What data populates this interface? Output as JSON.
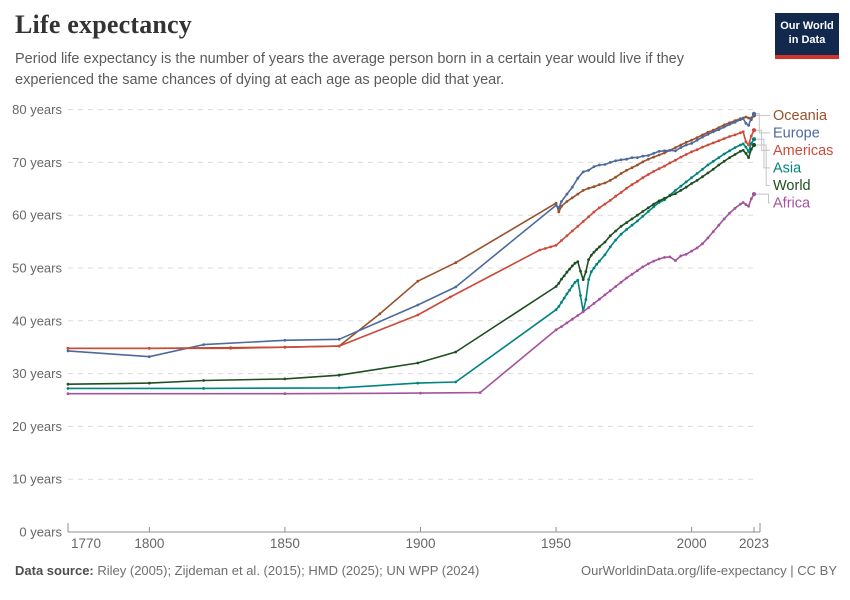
{
  "header": {
    "title": "Life expectancy",
    "subtitle": "Period life expectancy is the number of years the average person born in a certain year would live if they experienced the same chances of dying at each age as people did that year.",
    "logo": {
      "line1": "Our World",
      "line2": "in Data"
    }
  },
  "footer": {
    "source_label": "Data source:",
    "source_value": " Riley (2005); Zijdeman et al. (2015); HMD (2025); UN WPP (2024)",
    "attribution": "OurWorldinData.org/life-expectancy | CC BY"
  },
  "chart_data": {
    "type": "line",
    "title": "Life expectancy",
    "xlabel": "",
    "ylabel": "years",
    "x_domain": [
      1770,
      2023
    ],
    "y_domain": [
      0,
      80
    ],
    "x_ticks": [
      1770,
      1800,
      1850,
      1900,
      1950,
      2000,
      2023
    ],
    "y_ticks": [
      0,
      10,
      20,
      30,
      40,
      50,
      60,
      70,
      80
    ],
    "y_tick_suffix": " years",
    "grid": "horizontal-dashed",
    "legend_position": "right",
    "legend_order": [
      "Oceania",
      "Europe",
      "Americas",
      "Asia",
      "World",
      "Africa"
    ],
    "series": [
      {
        "name": "Oceania",
        "color": "#9A5129",
        "points": [
          [
            1770,
            34.8
          ],
          [
            1800,
            34.8
          ],
          [
            1830,
            34.9
          ],
          [
            1850,
            35.0
          ],
          [
            1870,
            35.2
          ],
          [
            1885,
            41.3
          ],
          [
            1899,
            47.5
          ],
          [
            1913,
            51.0
          ],
          [
            1950,
            62.3
          ],
          [
            1951,
            60.6
          ],
          [
            1952,
            61.7
          ],
          [
            1954,
            62.6
          ],
          [
            1956,
            63.3
          ],
          [
            1958,
            64.0
          ],
          [
            1960,
            64.7
          ],
          [
            1962,
            65.1
          ],
          [
            1964,
            65.4
          ],
          [
            1966,
            65.8
          ],
          [
            1968,
            66.1
          ],
          [
            1970,
            66.6
          ],
          [
            1972,
            67.2
          ],
          [
            1974,
            67.9
          ],
          [
            1976,
            68.5
          ],
          [
            1978,
            69.0
          ],
          [
            1980,
            69.5
          ],
          [
            1982,
            70.1
          ],
          [
            1984,
            70.6
          ],
          [
            1986,
            71.0
          ],
          [
            1988,
            71.4
          ],
          [
            1990,
            71.8
          ],
          [
            1992,
            72.3
          ],
          [
            1994,
            72.8
          ],
          [
            1996,
            73.3
          ],
          [
            1998,
            73.8
          ],
          [
            2000,
            74.2
          ],
          [
            2002,
            74.7
          ],
          [
            2004,
            75.2
          ],
          [
            2006,
            75.7
          ],
          [
            2008,
            76.1
          ],
          [
            2010,
            76.6
          ],
          [
            2012,
            77.1
          ],
          [
            2014,
            77.5
          ],
          [
            2016,
            77.9
          ],
          [
            2018,
            78.3
          ],
          [
            2019,
            78.4
          ],
          [
            2020,
            78.6
          ],
          [
            2021,
            78.4
          ],
          [
            2022,
            78.1
          ],
          [
            2023,
            78.9
          ]
        ]
      },
      {
        "name": "Europe",
        "color": "#4C6A9C",
        "points": [
          [
            1770,
            34.3
          ],
          [
            1800,
            33.2
          ],
          [
            1820,
            35.5
          ],
          [
            1850,
            36.3
          ],
          [
            1870,
            36.5
          ],
          [
            1899,
            43.0
          ],
          [
            1913,
            46.4
          ],
          [
            1950,
            61.9
          ],
          [
            1951,
            61.4
          ],
          [
            1952,
            62.6
          ],
          [
            1954,
            64.0
          ],
          [
            1956,
            65.3
          ],
          [
            1958,
            67.0
          ],
          [
            1960,
            68.2
          ],
          [
            1962,
            68.5
          ],
          [
            1964,
            69.2
          ],
          [
            1966,
            69.5
          ],
          [
            1968,
            69.6
          ],
          [
            1970,
            70.0
          ],
          [
            1972,
            70.3
          ],
          [
            1974,
            70.5
          ],
          [
            1976,
            70.6
          ],
          [
            1978,
            70.9
          ],
          [
            1980,
            70.9
          ],
          [
            1982,
            71.2
          ],
          [
            1984,
            71.3
          ],
          [
            1986,
            71.7
          ],
          [
            1988,
            72.1
          ],
          [
            1990,
            72.2
          ],
          [
            1992,
            72.3
          ],
          [
            1994,
            72.2
          ],
          [
            1996,
            72.8
          ],
          [
            1998,
            73.3
          ],
          [
            2000,
            73.6
          ],
          [
            2002,
            74.2
          ],
          [
            2004,
            74.8
          ],
          [
            2006,
            75.3
          ],
          [
            2008,
            75.8
          ],
          [
            2010,
            76.2
          ],
          [
            2012,
            76.7
          ],
          [
            2014,
            77.2
          ],
          [
            2016,
            77.6
          ],
          [
            2018,
            78.1
          ],
          [
            2019,
            78.3
          ],
          [
            2020,
            77.4
          ],
          [
            2021,
            77.0
          ],
          [
            2022,
            78.4
          ],
          [
            2023,
            79.2
          ]
        ]
      },
      {
        "name": "Americas",
        "color": "#CB4A3A",
        "points": [
          [
            1770,
            34.8
          ],
          [
            1800,
            34.8
          ],
          [
            1830,
            34.8
          ],
          [
            1850,
            35.0
          ],
          [
            1870,
            35.2
          ],
          [
            1899,
            41.1
          ],
          [
            1911,
            44.5
          ],
          [
            1944,
            53.4
          ],
          [
            1946,
            53.7
          ],
          [
            1948,
            54.0
          ],
          [
            1950,
            54.3
          ],
          [
            1952,
            55.2
          ],
          [
            1954,
            56.1
          ],
          [
            1956,
            57.0
          ],
          [
            1958,
            57.9
          ],
          [
            1960,
            58.8
          ],
          [
            1962,
            59.7
          ],
          [
            1964,
            60.6
          ],
          [
            1966,
            61.4
          ],
          [
            1968,
            62.1
          ],
          [
            1970,
            62.8
          ],
          [
            1972,
            63.6
          ],
          [
            1974,
            64.3
          ],
          [
            1976,
            65.1
          ],
          [
            1978,
            65.8
          ],
          [
            1980,
            66.4
          ],
          [
            1982,
            67.1
          ],
          [
            1984,
            67.7
          ],
          [
            1986,
            68.3
          ],
          [
            1988,
            68.8
          ],
          [
            1990,
            69.3
          ],
          [
            1992,
            69.9
          ],
          [
            1994,
            70.4
          ],
          [
            1996,
            71.0
          ],
          [
            1998,
            71.5
          ],
          [
            2000,
            72.0
          ],
          [
            2002,
            72.4
          ],
          [
            2004,
            72.9
          ],
          [
            2006,
            73.3
          ],
          [
            2008,
            73.7
          ],
          [
            2010,
            74.1
          ],
          [
            2012,
            74.5
          ],
          [
            2014,
            74.9
          ],
          [
            2016,
            75.2
          ],
          [
            2018,
            75.6
          ],
          [
            2019,
            75.8
          ],
          [
            2020,
            73.9
          ],
          [
            2021,
            73.3
          ],
          [
            2022,
            75.0
          ],
          [
            2023,
            76.1
          ]
        ]
      },
      {
        "name": "Asia",
        "color": "#00847E",
        "points": [
          [
            1770,
            27.2
          ],
          [
            1820,
            27.2
          ],
          [
            1870,
            27.3
          ],
          [
            1899,
            28.2
          ],
          [
            1913,
            28.4
          ],
          [
            1950,
            42.1
          ],
          [
            1951,
            42.7
          ],
          [
            1952,
            43.5
          ],
          [
            1953,
            44.3
          ],
          [
            1954,
            45.1
          ],
          [
            1955,
            45.8
          ],
          [
            1956,
            46.6
          ],
          [
            1957,
            47.3
          ],
          [
            1958,
            47.7
          ],
          [
            1959,
            44.8
          ],
          [
            1960,
            41.8
          ],
          [
            1961,
            44.0
          ],
          [
            1962,
            47.8
          ],
          [
            1963,
            49.3
          ],
          [
            1964,
            50.0
          ],
          [
            1965,
            50.7
          ],
          [
            1966,
            51.3
          ],
          [
            1968,
            52.5
          ],
          [
            1970,
            54.0
          ],
          [
            1972,
            55.3
          ],
          [
            1974,
            56.4
          ],
          [
            1976,
            57.3
          ],
          [
            1978,
            58.1
          ],
          [
            1980,
            58.9
          ],
          [
            1982,
            59.8
          ],
          [
            1984,
            60.7
          ],
          [
            1986,
            61.6
          ],
          [
            1988,
            62.4
          ],
          [
            1990,
            62.9
          ],
          [
            1992,
            63.8
          ],
          [
            1994,
            64.7
          ],
          [
            1996,
            65.5
          ],
          [
            1998,
            66.3
          ],
          [
            2000,
            67.1
          ],
          [
            2002,
            67.9
          ],
          [
            2004,
            68.7
          ],
          [
            2006,
            69.5
          ],
          [
            2008,
            70.2
          ],
          [
            2010,
            70.9
          ],
          [
            2012,
            71.6
          ],
          [
            2014,
            72.2
          ],
          [
            2016,
            72.8
          ],
          [
            2018,
            73.3
          ],
          [
            2019,
            73.5
          ],
          [
            2020,
            72.9
          ],
          [
            2021,
            72.0
          ],
          [
            2022,
            73.6
          ],
          [
            2023,
            74.4
          ]
        ]
      },
      {
        "name": "World",
        "color": "#1F4F20",
        "points": [
          [
            1770,
            28.0
          ],
          [
            1800,
            28.2
          ],
          [
            1820,
            28.7
          ],
          [
            1850,
            29.0
          ],
          [
            1870,
            29.7
          ],
          [
            1899,
            32.0
          ],
          [
            1913,
            34.1
          ],
          [
            1950,
            46.5
          ],
          [
            1951,
            47.1
          ],
          [
            1952,
            47.9
          ],
          [
            1953,
            48.5
          ],
          [
            1954,
            49.2
          ],
          [
            1955,
            49.8
          ],
          [
            1956,
            50.4
          ],
          [
            1957,
            50.9
          ],
          [
            1958,
            51.2
          ],
          [
            1959,
            49.4
          ],
          [
            1960,
            47.8
          ],
          [
            1961,
            49.3
          ],
          [
            1962,
            51.6
          ],
          [
            1963,
            52.4
          ],
          [
            1964,
            53.0
          ],
          [
            1965,
            53.5
          ],
          [
            1966,
            54.0
          ],
          [
            1968,
            54.9
          ],
          [
            1970,
            56.1
          ],
          [
            1972,
            57.0
          ],
          [
            1974,
            57.9
          ],
          [
            1976,
            58.6
          ],
          [
            1978,
            59.3
          ],
          [
            1980,
            60.0
          ],
          [
            1982,
            60.7
          ],
          [
            1984,
            61.4
          ],
          [
            1986,
            62.1
          ],
          [
            1988,
            62.7
          ],
          [
            1990,
            63.2
          ],
          [
            1992,
            63.7
          ],
          [
            1994,
            64.1
          ],
          [
            1996,
            64.7
          ],
          [
            1998,
            65.3
          ],
          [
            2000,
            66.0
          ],
          [
            2002,
            66.6
          ],
          [
            2004,
            67.3
          ],
          [
            2006,
            68.0
          ],
          [
            2008,
            68.7
          ],
          [
            2010,
            69.5
          ],
          [
            2012,
            70.2
          ],
          [
            2014,
            70.9
          ],
          [
            2016,
            71.5
          ],
          [
            2018,
            72.1
          ],
          [
            2019,
            72.3
          ],
          [
            2020,
            71.7
          ],
          [
            2021,
            70.9
          ],
          [
            2022,
            72.5
          ],
          [
            2023,
            73.3
          ]
        ]
      },
      {
        "name": "Africa",
        "color": "#A2559C",
        "points": [
          [
            1770,
            26.2
          ],
          [
            1850,
            26.2
          ],
          [
            1900,
            26.3
          ],
          [
            1922,
            26.4
          ],
          [
            1950,
            38.3
          ],
          [
            1952,
            38.9
          ],
          [
            1954,
            39.6
          ],
          [
            1956,
            40.3
          ],
          [
            1958,
            41.0
          ],
          [
            1960,
            41.7
          ],
          [
            1962,
            42.5
          ],
          [
            1964,
            43.3
          ],
          [
            1966,
            44.1
          ],
          [
            1968,
            44.9
          ],
          [
            1970,
            45.7
          ],
          [
            1972,
            46.5
          ],
          [
            1974,
            47.3
          ],
          [
            1976,
            48.1
          ],
          [
            1978,
            48.8
          ],
          [
            1980,
            49.5
          ],
          [
            1982,
            50.2
          ],
          [
            1984,
            50.8
          ],
          [
            1986,
            51.3
          ],
          [
            1988,
            51.7
          ],
          [
            1990,
            52.0
          ],
          [
            1992,
            52.1
          ],
          [
            1994,
            51.4
          ],
          [
            1996,
            52.3
          ],
          [
            1998,
            52.6
          ],
          [
            2000,
            53.2
          ],
          [
            2002,
            53.8
          ],
          [
            2004,
            54.6
          ],
          [
            2006,
            55.7
          ],
          [
            2008,
            56.9
          ],
          [
            2010,
            58.1
          ],
          [
            2012,
            59.3
          ],
          [
            2014,
            60.4
          ],
          [
            2016,
            61.3
          ],
          [
            2018,
            62.1
          ],
          [
            2019,
            62.4
          ],
          [
            2020,
            62.0
          ],
          [
            2021,
            61.7
          ],
          [
            2022,
            63.1
          ],
          [
            2023,
            64.0
          ]
        ]
      }
    ]
  },
  "style_colors": {
    "grid": "#dcdcdc",
    "axis": "#8f8f8f",
    "tick_label": "#666666",
    "connector": "#c4c4c4"
  }
}
